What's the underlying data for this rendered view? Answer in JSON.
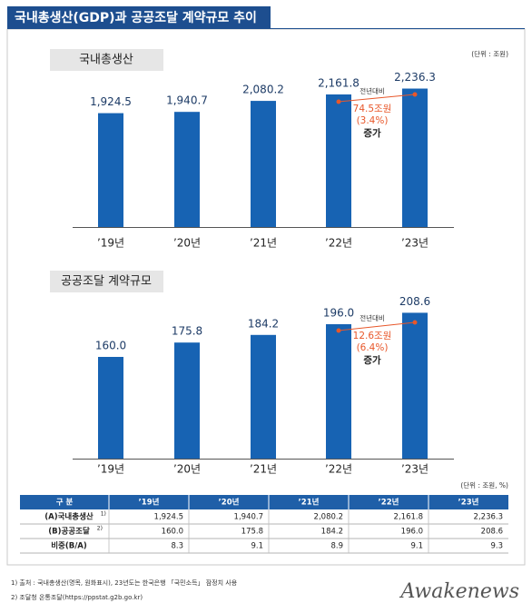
{
  "header": {
    "title": "국내총생산(GDP)과 공공조달 계약규모 추이"
  },
  "chart_data": [
    {
      "type": "bar",
      "title": "국내총생산",
      "unit": "(단위 : 조원)",
      "categories": [
        "’19년",
        "’20년",
        "’21년",
        "’22년",
        "’23년"
      ],
      "values": [
        1924.5,
        1940.7,
        2080.2,
        2161.8,
        2236.3
      ],
      "value_labels": [
        "1,924.5",
        "1,940.7",
        "2,080.2",
        "2,161.8",
        "2,236.3"
      ],
      "color": "#1763b3",
      "ylim": [
        480,
        2300
      ],
      "annotation": {
        "label": "전년대비",
        "amount": "74.5조원",
        "percent": "(3.4%)",
        "word": "증가",
        "color": "#e8572a"
      }
    },
    {
      "type": "bar",
      "title": "공공조달 계약규모",
      "categories": [
        "’19년",
        "’20년",
        "’21년",
        "’22년",
        "’23년"
      ],
      "values": [
        160.0,
        175.8,
        184.2,
        196.0,
        208.6
      ],
      "value_labels": [
        "160.0",
        "175.8",
        "184.2",
        "196.0",
        "208.6"
      ],
      "color": "#1763b3",
      "ylim": [
        48,
        220
      ],
      "annotation": {
        "label": "전년대비",
        "amount": "12.6조원",
        "percent": "(6.4%)",
        "word": "증가",
        "color": "#e8572a"
      }
    }
  ],
  "table": {
    "unit": "(단위 : 조원, %)",
    "header": [
      "구  분",
      "’19년",
      "’20년",
      "’21년",
      "’22년",
      "’23년"
    ],
    "rows": [
      {
        "label": "(A)국내총생산",
        "note": "1)",
        "cells": [
          "1,924.5",
          "1,940.7",
          "2,080.2",
          "2,161.8",
          "2,236.3"
        ]
      },
      {
        "label": "(B)공공조달",
        "note": "2)",
        "cells": [
          "160.0",
          "175.8",
          "184.2",
          "196.0",
          "208.6"
        ]
      },
      {
        "label": "비중(B/A)",
        "cells": [
          "8.3",
          "9.1",
          "8.9",
          "9.1",
          "9.3"
        ]
      }
    ]
  },
  "footnotes": [
    "1) 출처 : 국내총생산(명목, 원화표시), 23년도는 한국은행 「국민소득」 잠정치 사용",
    "2) 조달청 온통조달(https://ppstat.g2b.go.kr)"
  ],
  "logo": "Awakenews"
}
